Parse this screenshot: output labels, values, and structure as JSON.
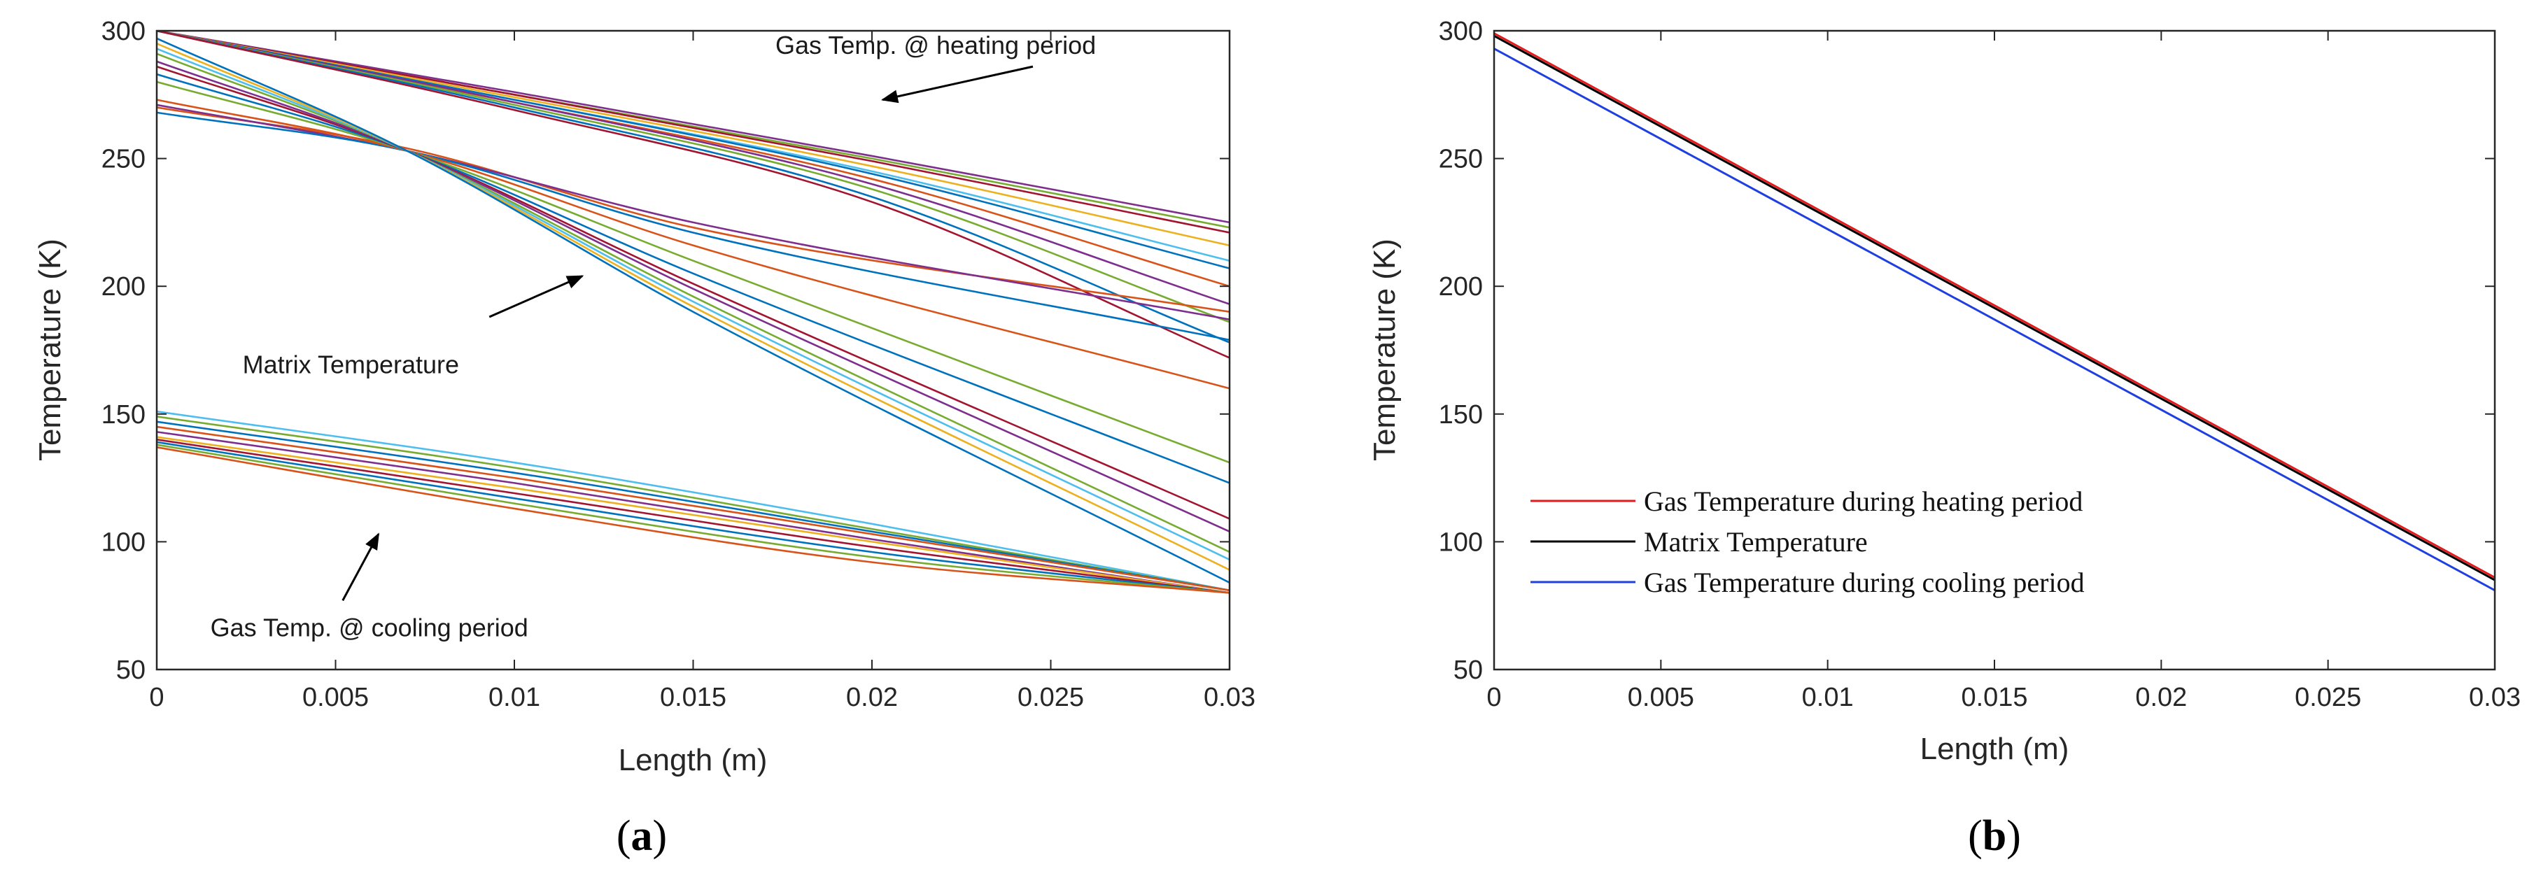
{
  "panels": {
    "a": {
      "label_open": "(",
      "label_letter": "a",
      "label_close": ")"
    },
    "b": {
      "label_open": "(",
      "label_letter": "b",
      "label_close": ")"
    }
  },
  "chart_data": [
    {
      "type": "line",
      "panel": "a",
      "xlabel": "Length (m)",
      "ylabel": "Temperature (K)",
      "xlim": [
        0,
        0.03
      ],
      "ylim": [
        50,
        300
      ],
      "xticks": [
        0,
        0.005,
        0.01,
        0.015,
        0.02,
        0.025,
        0.03
      ],
      "xtick_labels": [
        "0",
        "0.005",
        "0.01",
        "0.015",
        "0.02",
        "0.025",
        "0.03"
      ],
      "yticks": [
        50,
        100,
        150,
        200,
        250,
        300
      ],
      "ytick_labels": [
        "50",
        "100",
        "150",
        "200",
        "250",
        "300"
      ],
      "grid": false,
      "annotations": [
        {
          "text": "Gas Temp. @ heating period",
          "arrow_from": [
            0.0245,
            286
          ],
          "arrow_to": [
            0.0203,
            273
          ]
        },
        {
          "text": "Matrix  Temperature",
          "arrow_from": [
            0.0093,
            188
          ],
          "arrow_to": [
            0.0119,
            204
          ]
        },
        {
          "text": "Gas Temp. @ cooling period",
          "arrow_from": [
            0.0052,
            77
          ],
          "arrow_to": [
            0.0062,
            103
          ]
        }
      ],
      "series_groups": [
        {
          "group": "heating",
          "series": [
            {
              "color": "#7e2f8e",
              "values": [
                [
                  0,
                  300
                ],
                [
                  0.01,
                  276
                ],
                [
                  0.02,
                  251
                ],
                [
                  0.03,
                  225
                ]
              ]
            },
            {
              "color": "#77ac30",
              "values": [
                [
                  0,
                  300
                ],
                [
                  0.01,
                  275
                ],
                [
                  0.02,
                  250
                ],
                [
                  0.03,
                  223
                ]
              ]
            },
            {
              "color": "#a2142f",
              "values": [
                [
                  0,
                  300
                ],
                [
                  0.01,
                  275
                ],
                [
                  0.02,
                  249
                ],
                [
                  0.03,
                  221
                ]
              ]
            },
            {
              "color": "#edb120",
              "values": [
                [
                  0,
                  300
                ],
                [
                  0.01,
                  274
                ],
                [
                  0.02,
                  247
                ],
                [
                  0.03,
                  216
                ]
              ]
            },
            {
              "color": "#4dbeee",
              "values": [
                [
                  0,
                  300
                ],
                [
                  0.01,
                  273
                ],
                [
                  0.02,
                  245
                ],
                [
                  0.03,
                  210
                ]
              ]
            },
            {
              "color": "#0072bd",
              "values": [
                [
                  0,
                  300
                ],
                [
                  0.01,
                  273
                ],
                [
                  0.02,
                  244
                ],
                [
                  0.03,
                  207
                ]
              ]
            },
            {
              "color": "#d95319",
              "values": [
                [
                  0,
                  300
                ],
                [
                  0.01,
                  272
                ],
                [
                  0.02,
                  242
                ],
                [
                  0.03,
                  200
                ]
              ]
            },
            {
              "color": "#7e2f8e",
              "values": [
                [
                  0,
                  300
                ],
                [
                  0.01,
                  272
                ],
                [
                  0.02,
                  240
                ],
                [
                  0.03,
                  193
                ]
              ]
            },
            {
              "color": "#77ac30",
              "values": [
                [
                  0,
                  300
                ],
                [
                  0.01,
                  271
                ],
                [
                  0.02,
                  238
                ],
                [
                  0.03,
                  186
                ]
              ]
            },
            {
              "color": "#0072bd",
              "values": [
                [
                  0,
                  300
                ],
                [
                  0.01,
                  270
                ],
                [
                  0.02,
                  235
                ],
                [
                  0.03,
                  178
                ]
              ]
            },
            {
              "color": "#a2142f",
              "values": [
                [
                  0,
                  300
                ],
                [
                  0.01,
                  269
                ],
                [
                  0.02,
                  233
                ],
                [
                  0.03,
                  172
                ]
              ]
            }
          ]
        },
        {
          "group": "matrix",
          "series": [
            {
              "color": "#d95319",
              "values": [
                [
                  0,
                  270
                ],
                [
                  0.007,
                  254
                ],
                [
                  0.015,
                  223
                ],
                [
                  0.03,
                  190
                ]
              ]
            },
            {
              "color": "#7e2f8e",
              "values": [
                [
                  0,
                  271
                ],
                [
                  0.007,
                  253
                ],
                [
                  0.015,
                  225
                ],
                [
                  0.03,
                  187
                ]
              ]
            },
            {
              "color": "#0072bd",
              "values": [
                [
                  0,
                  268
                ],
                [
                  0.007,
                  253
                ],
                [
                  0.015,
                  221
                ],
                [
                  0.03,
                  179
                ]
              ]
            },
            {
              "color": "#d95319",
              "values": [
                [
                  0,
                  273
                ],
                [
                  0.007,
                  253
                ],
                [
                  0.015,
                  216
                ],
                [
                  0.03,
                  160
                ]
              ]
            },
            {
              "color": "#77ac30",
              "values": [
                [
                  0,
                  280
                ],
                [
                  0.007,
                  253
                ],
                [
                  0.015,
                  210
                ],
                [
                  0.03,
                  131
                ]
              ]
            },
            {
              "color": "#0072bd",
              "values": [
                [
                  0,
                  283
                ],
                [
                  0.007,
                  253
                ],
                [
                  0.015,
                  205
                ],
                [
                  0.03,
                  123
                ]
              ]
            },
            {
              "color": "#a2142f",
              "values": [
                [
                  0,
                  286
                ],
                [
                  0.007,
                  253
                ],
                [
                  0.015,
                  201
                ],
                [
                  0.03,
                  109
                ]
              ]
            },
            {
              "color": "#7e2f8e",
              "values": [
                [
                  0,
                  288
                ],
                [
                  0.007,
                  253
                ],
                [
                  0.015,
                  199
                ],
                [
                  0.03,
                  104
                ]
              ]
            },
            {
              "color": "#77ac30",
              "values": [
                [
                  0,
                  291
                ],
                [
                  0.007,
                  253
                ],
                [
                  0.015,
                  196
                ],
                [
                  0.03,
                  96
                ]
              ]
            },
            {
              "color": "#4dbeee",
              "values": [
                [
                  0,
                  293
                ],
                [
                  0.007,
                  253
                ],
                [
                  0.015,
                  194
                ],
                [
                  0.03,
                  93
                ]
              ]
            },
            {
              "color": "#edb120",
              "values": [
                [
                  0,
                  295
                ],
                [
                  0.007,
                  253
                ],
                [
                  0.015,
                  192
                ],
                [
                  0.03,
                  89
                ]
              ]
            },
            {
              "color": "#0072bd",
              "values": [
                [
                  0,
                  297
                ],
                [
                  0.007,
                  253
                ],
                [
                  0.015,
                  190
                ],
                [
                  0.03,
                  84
                ]
              ]
            }
          ]
        },
        {
          "group": "cooling",
          "series": [
            {
              "color": "#4dbeee",
              "values": [
                [
                  0,
                  151
                ],
                [
                  0.01,
                  131
                ],
                [
                  0.02,
                  107
                ],
                [
                  0.03,
                  81
                ]
              ]
            },
            {
              "color": "#77ac30",
              "values": [
                [
                  0,
                  149
                ],
                [
                  0.01,
                  129
                ],
                [
                  0.02,
                  105
                ],
                [
                  0.03,
                  81
                ]
              ]
            },
            {
              "color": "#0072bd",
              "values": [
                [
                  0,
                  147
                ],
                [
                  0.01,
                  127
                ],
                [
                  0.02,
                  104
                ],
                [
                  0.03,
                  81
                ]
              ]
            },
            {
              "color": "#d95319",
              "values": [
                [
                  0,
                  145
                ],
                [
                  0.01,
                  125
                ],
                [
                  0.02,
                  103
                ],
                [
                  0.03,
                  81
                ]
              ]
            },
            {
              "color": "#7e2f8e",
              "values": [
                [
                  0,
                  143
                ],
                [
                  0.01,
                  123
                ],
                [
                  0.02,
                  101
                ],
                [
                  0.03,
                  80
                ]
              ]
            },
            {
              "color": "#edb120",
              "values": [
                [
                  0,
                  141
                ],
                [
                  0.01,
                  121
                ],
                [
                  0.02,
                  100
                ],
                [
                  0.03,
                  80
                ]
              ]
            },
            {
              "color": "#a2142f",
              "values": [
                [
                  0,
                  140
                ],
                [
                  0.01,
                  119
                ],
                [
                  0.02,
                  98
                ],
                [
                  0.03,
                  80
                ]
              ]
            },
            {
              "color": "#0072bd",
              "values": [
                [
                  0,
                  139
                ],
                [
                  0.01,
                  117
                ],
                [
                  0.02,
                  96
                ],
                [
                  0.03,
                  80
                ]
              ]
            },
            {
              "color": "#77ac30",
              "values": [
                [
                  0,
                  138
                ],
                [
                  0.01,
                  115
                ],
                [
                  0.02,
                  94
                ],
                [
                  0.03,
                  80
                ]
              ]
            },
            {
              "color": "#d95319",
              "values": [
                [
                  0,
                  137
                ],
                [
                  0.01,
                  113
                ],
                [
                  0.02,
                  92
                ],
                [
                  0.03,
                  80
                ]
              ]
            }
          ]
        }
      ]
    },
    {
      "type": "line",
      "panel": "b",
      "xlabel": "Length (m)",
      "ylabel": "Temperature (K)",
      "xlim": [
        0,
        0.03
      ],
      "ylim": [
        50,
        300
      ],
      "xticks": [
        0,
        0.005,
        0.01,
        0.015,
        0.02,
        0.025,
        0.03
      ],
      "xtick_labels": [
        "0",
        "0.005",
        "0.01",
        "0.015",
        "0.02",
        "0.025",
        "0.03"
      ],
      "yticks": [
        50,
        100,
        150,
        200,
        250,
        300
      ],
      "ytick_labels": [
        "50",
        "100",
        "150",
        "200",
        "250",
        "300"
      ],
      "grid": false,
      "legend_position": "lower-left",
      "series": [
        {
          "name": "Gas Temperature during heating period",
          "color": "#e31a1c",
          "values": [
            [
              0,
              299
            ],
            [
              0.03,
              86
            ]
          ]
        },
        {
          "name": "Matrix Temperature",
          "color": "#000000",
          "values": [
            [
              0,
              298
            ],
            [
              0.03,
              85
            ]
          ]
        },
        {
          "name": "Gas Temperature during cooling period",
          "color": "#1f3fe0",
          "values": [
            [
              0,
              293
            ],
            [
              0.03,
              81
            ]
          ]
        }
      ]
    }
  ]
}
